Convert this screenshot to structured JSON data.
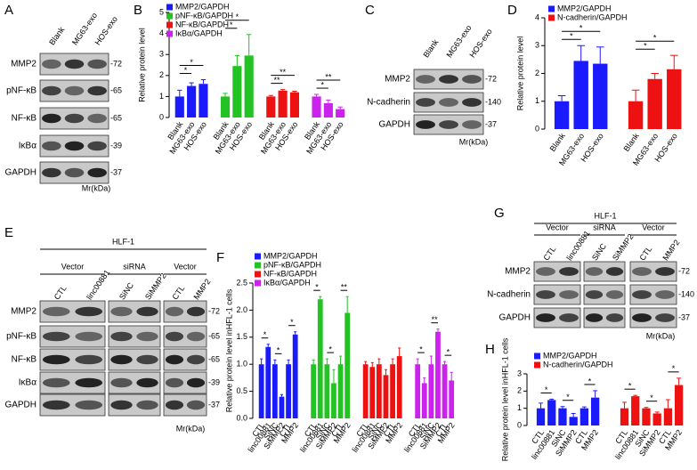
{
  "blots": [
    {
      "label": "A",
      "lanes": [
        "Blank",
        "MG63-exo",
        "HOS-exo"
      ],
      "proteins": [
        "MMP2",
        "pNF-κB",
        "NF-κB",
        "IκBα",
        "GAPDH"
      ],
      "mw": [
        "-72",
        "-65",
        "-65",
        "-39",
        "-37"
      ],
      "unit": "Mr(kDa)"
    },
    {
      "label": "C",
      "lanes": [
        "Blank",
        "MG63-exo",
        "HOS-exo"
      ],
      "proteins": [
        "MMP2",
        "N-cadherin",
        "GAPDH"
      ],
      "mw": [
        "-72",
        "-140",
        "-37"
      ],
      "unit": "Mr(kDa)"
    },
    {
      "label": "E",
      "cell_line": "HLF-1",
      "groups": [
        {
          "name": "Vector",
          "lanes": [
            "CTL",
            "linc00881"
          ]
        },
        {
          "name": "siRNA",
          "lanes": [
            "SiNC",
            "SiMMP2"
          ]
        },
        {
          "name": "Vector",
          "lanes": [
            "CTL",
            "MMP2"
          ]
        }
      ],
      "proteins": [
        "MMP2",
        "pNF-κB",
        "NF-κB",
        "IκBα",
        "GAPDH"
      ],
      "mw": [
        "-72",
        "-65",
        "-65",
        "-39",
        "-37"
      ],
      "unit": "Mr(kDa)"
    },
    {
      "label": "G",
      "cell_line": "HLF-1",
      "groups": [
        {
          "name": "Vector",
          "lanes": [
            "CTL",
            "linc00881"
          ]
        },
        {
          "name": "siRNA",
          "lanes": [
            "SiNC",
            "SiMMP2"
          ]
        },
        {
          "name": "Vector",
          "lanes": [
            "CTL",
            "MMP2"
          ]
        }
      ],
      "proteins": [
        "MMP2",
        "N-cadherin",
        "GAPDH"
      ],
      "mw": [
        "-72",
        "-140",
        "-37"
      ],
      "unit": "Mr(kDa)"
    }
  ],
  "chart_data": [
    {
      "type": "bar",
      "label": "B",
      "ylabel": "Relative protein level",
      "control": "first",
      "categories": [
        "Blank",
        "MG63-exo",
        "HOS-exo"
      ],
      "ylim": [
        0,
        5
      ],
      "yticks": [
        0,
        1,
        2,
        3,
        4,
        5
      ],
      "series": [
        {
          "name": "MMP2/GAPDH",
          "color": "#1a1aff",
          "values": [
            1.0,
            1.5,
            1.6
          ],
          "errors": [
            0.3,
            0.15,
            0.2
          ],
          "stars": [
            null,
            "*",
            "*"
          ]
        },
        {
          "name": "pNF-κB/GAPDH",
          "color": "#22c322",
          "values": [
            1.0,
            2.45,
            2.95
          ],
          "errors": [
            0.15,
            0.5,
            1.0
          ],
          "stars": [
            null,
            "*",
            "*"
          ]
        },
        {
          "name": "NF-κB/GAPDH",
          "color": "#ee1111",
          "values": [
            1.0,
            1.28,
            1.2
          ],
          "errors": [
            0.05,
            0.05,
            0.05
          ],
          "stars": [
            null,
            "**",
            "**"
          ]
        },
        {
          "name": "IκBα/GAPDH",
          "color": "#cc22ee",
          "values": [
            1.0,
            0.68,
            0.4
          ],
          "errors": [
            0.1,
            0.15,
            0.1
          ],
          "stars": [
            null,
            "*",
            "**"
          ]
        }
      ]
    },
    {
      "type": "bar",
      "label": "D",
      "ylabel": "Relative protein level",
      "control": "first",
      "categories": [
        "Blank",
        "MG63-exo",
        "HOS-exo"
      ],
      "ylim": [
        0,
        4
      ],
      "yticks": [
        0,
        1,
        2,
        3,
        4
      ],
      "series": [
        {
          "name": "MMP2/GAPDH",
          "color": "#1a1aff",
          "values": [
            1.0,
            2.45,
            2.35
          ],
          "errors": [
            0.2,
            0.55,
            0.6
          ],
          "stars": [
            null,
            "*",
            "*"
          ]
        },
        {
          "name": "N-cadherin/GAPDH",
          "color": "#ee1111",
          "values": [
            1.0,
            1.8,
            2.15
          ],
          "errors": [
            0.4,
            0.2,
            0.5
          ],
          "stars": [
            null,
            "*",
            "*"
          ]
        }
      ]
    },
    {
      "type": "bar",
      "label": "F",
      "ylabel": "Relative protein level inHFL-1 cells",
      "control": "previous",
      "categories": [
        "CTL",
        "linc00881",
        "SiNC",
        "SiMMP2",
        "CTL",
        "MMP2"
      ],
      "ylim": [
        0,
        2.5
      ],
      "yticks": [
        {
          "value": 0,
          "label": "0.0"
        },
        {
          "value": 0.5,
          "label": "0.5"
        },
        {
          "value": 1,
          "label": "1.0"
        },
        {
          "value": 1.5,
          "label": "1.5"
        },
        {
          "value": 2,
          "label": "2.0"
        },
        {
          "value": 2.5,
          "label": "2.5"
        }
      ],
      "series": [
        {
          "name": "MMP2/GAPDH",
          "color": "#1a1aff",
          "values": [
            1.0,
            1.32,
            1.0,
            0.4,
            1.0,
            1.55
          ],
          "errors": [
            0.1,
            0.05,
            0.08,
            0.04,
            0.08,
            0.05
          ],
          "stars": [
            null,
            "*",
            null,
            "*",
            null,
            "*"
          ]
        },
        {
          "name": "pNF-κB/GAPDH",
          "color": "#22c322",
          "values": [
            1.0,
            2.2,
            1.0,
            0.65,
            1.0,
            1.95
          ],
          "errors": [
            0.08,
            0.05,
            0.1,
            0.25,
            0.15,
            0.3
          ],
          "stars": [
            null,
            "*",
            null,
            "*",
            null,
            "**"
          ]
        },
        {
          "name": "NF-κB/GAPDH",
          "color": "#ee1111",
          "values": [
            1.0,
            0.95,
            1.0,
            0.8,
            1.0,
            1.15
          ],
          "errors": [
            0.05,
            0.08,
            0.1,
            0.1,
            0.1,
            0.15
          ],
          "stars": [
            null,
            null,
            null,
            null,
            null,
            null
          ]
        },
        {
          "name": "IκBα/GAPDH",
          "color": "#cc22ee",
          "values": [
            1.0,
            0.65,
            1.0,
            1.6,
            1.0,
            0.7
          ],
          "errors": [
            0.1,
            0.1,
            0.15,
            0.05,
            0.05,
            0.15
          ],
          "stars": [
            null,
            "*",
            null,
            "**",
            null,
            "*"
          ]
        }
      ]
    },
    {
      "type": "bar",
      "label": "H",
      "ylabel": "Relative protein level inHFL-1 cells",
      "control": "previous",
      "categories": [
        "CTL",
        "linc00881",
        "SiNC",
        "SiMMP2",
        "CTL",
        "MMP2"
      ],
      "ylim": [
        0,
        3
      ],
      "yticks": [
        0,
        1,
        2,
        3
      ],
      "series": [
        {
          "name": "MMP2/GAPDH",
          "color": "#1a1aff",
          "values": [
            1.0,
            1.48,
            1.0,
            0.5,
            1.0,
            1.62
          ],
          "errors": [
            0.3,
            0.05,
            0.1,
            0.2,
            0.08,
            0.4
          ],
          "stars": [
            null,
            "*",
            null,
            "*",
            null,
            "*"
          ]
        },
        {
          "name": "N-cadherin/GAPDH",
          "color": "#ee1111",
          "values": [
            1.0,
            1.7,
            1.0,
            0.7,
            1.0,
            2.35
          ],
          "errors": [
            0.35,
            0.05,
            0.05,
            0.08,
            0.5,
            0.4
          ],
          "stars": [
            null,
            "*",
            null,
            "*",
            null,
            "*"
          ]
        }
      ]
    }
  ]
}
